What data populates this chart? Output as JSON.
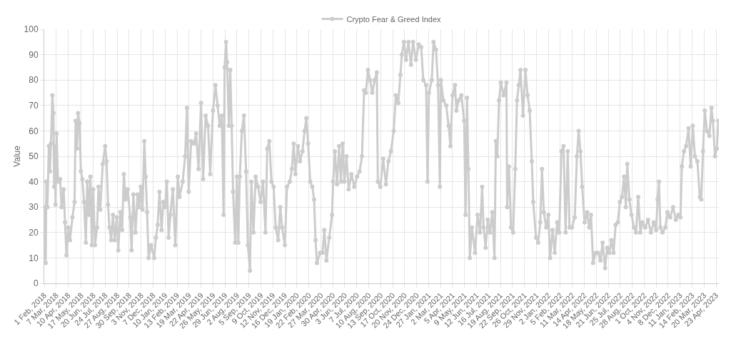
{
  "chart_data": {
    "type": "line",
    "ylabel": "Value",
    "legend": "top",
    "grid": true,
    "marker": "circle",
    "line_style": "solid",
    "xlim": [
      "2018-02-01",
      "2023-05-01"
    ],
    "ylim": [
      0,
      100
    ],
    "yticks": [
      0,
      10,
      20,
      30,
      40,
      50,
      60,
      70,
      80,
      90,
      100
    ],
    "xticks": [
      {
        "value": "2018-02-01",
        "label": "1 Feb, 2018"
      },
      {
        "value": "2018-03-07",
        "label": "7 Mar, 2018"
      },
      {
        "value": "2018-04-10",
        "label": "10 Apr, 2018"
      },
      {
        "value": "2018-05-17",
        "label": "17 May, 2018"
      },
      {
        "value": "2018-06-20",
        "label": "20 Jun, 2018"
      },
      {
        "value": "2018-07-24",
        "label": "24 Jul, 2018"
      },
      {
        "value": "2018-08-27",
        "label": "27 Aug, 2018"
      },
      {
        "value": "2018-09-30",
        "label": "30 Sep, 2018"
      },
      {
        "value": "2018-11-03",
        "label": "3 Nov, 2018"
      },
      {
        "value": "2018-12-07",
        "label": "7 Dec, 2018"
      },
      {
        "value": "2019-01-10",
        "label": "10 Jan, 2019"
      },
      {
        "value": "2019-02-13",
        "label": "13 Feb, 2019"
      },
      {
        "value": "2019-03-19",
        "label": "19 Mar, 2019"
      },
      {
        "value": "2019-04-22",
        "label": "22 Apr, 2019"
      },
      {
        "value": "2019-05-26",
        "label": "26 May, 2019"
      },
      {
        "value": "2019-06-29",
        "label": "29 Jun, 2019"
      },
      {
        "value": "2019-08-02",
        "label": "2 Aug, 2019"
      },
      {
        "value": "2019-09-05",
        "label": "5 Sep, 2019"
      },
      {
        "value": "2019-10-09",
        "label": "9 Oct, 2019"
      },
      {
        "value": "2019-11-12",
        "label": "12 Nov, 2019"
      },
      {
        "value": "2019-12-16",
        "label": "16 Dec, 2019"
      },
      {
        "value": "2020-01-19",
        "label": "19 Jan, 2020"
      },
      {
        "value": "2020-02-22",
        "label": "22 Feb, 2020"
      },
      {
        "value": "2020-03-27",
        "label": "27 Mar, 2020"
      },
      {
        "value": "2020-04-30",
        "label": "30 Apr, 2020"
      },
      {
        "value": "2020-06-03",
        "label": "3 Jun, 2020"
      },
      {
        "value": "2020-07-07",
        "label": "7 Jul, 2020"
      },
      {
        "value": "2020-08-10",
        "label": "10 Aug, 2020"
      },
      {
        "value": "2020-09-13",
        "label": "13 Sep, 2020"
      },
      {
        "value": "2020-10-17",
        "label": "17 Oct, 2020"
      },
      {
        "value": "2020-11-20",
        "label": "20 Nov, 2020"
      },
      {
        "value": "2020-12-24",
        "label": "24 Dec, 2020"
      },
      {
        "value": "2021-01-27",
        "label": "27 Jan, 2021"
      },
      {
        "value": "2021-03-02",
        "label": "2 Mar, 2021"
      },
      {
        "value": "2021-04-05",
        "label": "5 Apr, 2021"
      },
      {
        "value": "2021-05-09",
        "label": "9 May, 2021"
      },
      {
        "value": "2021-06-12",
        "label": "12 Jun, 2021"
      },
      {
        "value": "2021-07-16",
        "label": "16 Jul, 2021"
      },
      {
        "value": "2021-08-19",
        "label": "19 Aug, 2021"
      },
      {
        "value": "2021-09-22",
        "label": "22 Sep, 2021"
      },
      {
        "value": "2021-10-26",
        "label": "26 Oct, 2021"
      },
      {
        "value": "2021-11-29",
        "label": "29 Nov, 2021"
      },
      {
        "value": "2022-01-02",
        "label": "2 Jan, 2022"
      },
      {
        "value": "2022-02-05",
        "label": "5 Feb, 2022"
      },
      {
        "value": "2022-03-11",
        "label": "11 Mar, 2022"
      },
      {
        "value": "2022-04-14",
        "label": "14 Apr, 2022"
      },
      {
        "value": "2022-05-18",
        "label": "18 May, 2022"
      },
      {
        "value": "2022-06-21",
        "label": "21 Jun, 2022"
      },
      {
        "value": "2022-07-25",
        "label": "25 Jul, 2022"
      },
      {
        "value": "2022-08-28",
        "label": "28 Aug, 2022"
      },
      {
        "value": "2022-10-01",
        "label": "1 Oct, 2022"
      },
      {
        "value": "2022-11-04",
        "label": "4 Nov, 2022"
      },
      {
        "value": "2022-12-08",
        "label": "8 Dec, 2022"
      },
      {
        "value": "2023-01-11",
        "label": "11 Jan, 2023"
      },
      {
        "value": "2023-02-14",
        "label": "14 Feb, 2023"
      },
      {
        "value": "2023-03-20",
        "label": "20 Mar, 2023"
      },
      {
        "value": "2023-04-23",
        "label": "23 Apr, 2023"
      }
    ],
    "series": [
      {
        "name": "Crypto Fear & Greed Index",
        "color": "#cccccc",
        "x": [
          "2018-02-01",
          "2018-02-03",
          "2018-02-05",
          "2018-02-07",
          "2018-02-10",
          "2018-02-14",
          "2018-02-17",
          "2018-02-20",
          "2018-02-24",
          "2018-02-27",
          "2018-03-01",
          "2018-03-03",
          "2018-03-05",
          "2018-03-08",
          "2018-03-12",
          "2018-03-18",
          "2018-03-22",
          "2018-03-28",
          "2018-04-01",
          "2018-04-05",
          "2018-04-10",
          "2018-04-15",
          "2018-04-22",
          "2018-04-28",
          "2018-05-01",
          "2018-05-05",
          "2018-05-08",
          "2018-05-12",
          "2018-05-16",
          "2018-05-20",
          "2018-05-25",
          "2018-05-30",
          "2018-06-03",
          "2018-06-07",
          "2018-06-12",
          "2018-06-16",
          "2018-06-20",
          "2018-06-25",
          "2018-07-01",
          "2018-07-05",
          "2018-07-10",
          "2018-07-17",
          "2018-07-24",
          "2018-07-28",
          "2018-08-01",
          "2018-08-05",
          "2018-08-10",
          "2018-08-15",
          "2018-08-20",
          "2018-08-26",
          "2018-08-30",
          "2018-09-05",
          "2018-09-10",
          "2018-09-15",
          "2018-09-20",
          "2018-09-26",
          "2018-10-03",
          "2018-10-07",
          "2018-10-12",
          "2018-10-18",
          "2018-10-24",
          "2018-10-28",
          "2018-11-02",
          "2018-11-07",
          "2018-11-12",
          "2018-11-16",
          "2018-11-20",
          "2018-11-24",
          "2018-12-01",
          "2018-12-10",
          "2018-12-15",
          "2018-12-20",
          "2018-12-25",
          "2018-12-31",
          "2019-01-05",
          "2019-01-10",
          "2019-01-15",
          "2019-01-20",
          "2019-01-25",
          "2019-02-01",
          "2019-02-08",
          "2019-02-15",
          "2019-02-20",
          "2019-03-01",
          "2019-03-08",
          "2019-03-13",
          "2019-03-18",
          "2019-03-25",
          "2019-04-02",
          "2019-04-08",
          "2019-04-15",
          "2019-04-22",
          "2019-04-28",
          "2019-05-05",
          "2019-05-12",
          "2019-05-18",
          "2019-05-26",
          "2019-06-02",
          "2019-06-08",
          "2019-06-14",
          "2019-06-20",
          "2019-06-25",
          "2019-06-28",
          "2019-07-02",
          "2019-07-05",
          "2019-07-10",
          "2019-07-14",
          "2019-07-18",
          "2019-07-22",
          "2019-07-28",
          "2019-08-02",
          "2019-08-06",
          "2019-08-10",
          "2019-08-16",
          "2019-08-22",
          "2019-08-28",
          "2019-09-02",
          "2019-09-08",
          "2019-09-12",
          "2019-09-18",
          "2019-09-24",
          "2019-10-01",
          "2019-10-08",
          "2019-10-15",
          "2019-10-22",
          "2019-10-27",
          "2019-11-02",
          "2019-11-08",
          "2019-11-14",
          "2019-11-20",
          "2019-11-27",
          "2019-12-03",
          "2019-12-08",
          "2019-12-16",
          "2019-12-22",
          "2019-12-30",
          "2020-01-05",
          "2020-01-10",
          "2020-01-15",
          "2020-01-22",
          "2020-01-28",
          "2020-02-04",
          "2020-02-10",
          "2020-02-15",
          "2020-02-20",
          "2020-02-26",
          "2020-03-03",
          "2020-03-08",
          "2020-03-12",
          "2020-03-16",
          "2020-03-25",
          "2020-04-01",
          "2020-04-06",
          "2020-04-12",
          "2020-04-20",
          "2020-04-28",
          "2020-05-01",
          "2020-05-06",
          "2020-05-12",
          "2020-05-18",
          "2020-05-23",
          "2020-05-28",
          "2020-06-02",
          "2020-06-08",
          "2020-06-14",
          "2020-06-22",
          "2020-06-30",
          "2020-07-08",
          "2020-07-15",
          "2020-07-22",
          "2020-07-28",
          "2020-08-02",
          "2020-08-08",
          "2020-08-14",
          "2020-08-20",
          "2020-08-27",
          "2020-09-02",
          "2020-09-05",
          "2020-09-12",
          "2020-09-20",
          "2020-09-28",
          "2020-10-05",
          "2020-10-12",
          "2020-10-20",
          "2020-10-26",
          "2020-11-02",
          "2020-11-08",
          "2020-11-12",
          "2020-11-18",
          "2020-11-24",
          "2020-12-01",
          "2020-12-08",
          "2020-12-14",
          "2020-12-22",
          "2020-12-30",
          "2021-01-06",
          "2021-01-12",
          "2021-01-20",
          "2021-01-24",
          "2021-01-28",
          "2021-02-05",
          "2021-02-10",
          "2021-02-17",
          "2021-02-23",
          "2021-02-28",
          "2021-03-03",
          "2021-03-10",
          "2021-03-18",
          "2021-03-25",
          "2021-03-30",
          "2021-04-05",
          "2021-04-12",
          "2021-04-16",
          "2021-04-22",
          "2021-04-30",
          "2021-05-08",
          "2021-05-12",
          "2021-05-16",
          "2021-05-20",
          "2021-05-24",
          "2021-05-30",
          "2021-06-08",
          "2021-06-15",
          "2021-06-22",
          "2021-06-28",
          "2021-07-02",
          "2021-07-08",
          "2021-07-14",
          "2021-07-20",
          "2021-07-27",
          "2021-08-02",
          "2021-08-06",
          "2021-08-10",
          "2021-08-15",
          "2021-08-20",
          "2021-08-28",
          "2021-09-05",
          "2021-09-07",
          "2021-09-12",
          "2021-09-18",
          "2021-09-24",
          "2021-09-30",
          "2021-10-05",
          "2021-10-10",
          "2021-10-15",
          "2021-10-22",
          "2021-10-29",
          "2021-11-04",
          "2021-11-10",
          "2021-11-16",
          "2021-11-20",
          "2021-11-28",
          "2021-12-04",
          "2021-12-10",
          "2021-12-15",
          "2021-12-20",
          "2021-12-27",
          "2022-01-02",
          "2022-01-07",
          "2022-01-14",
          "2022-01-20",
          "2022-01-27",
          "2022-02-02",
          "2022-02-08",
          "2022-02-14",
          "2022-02-20",
          "2022-02-26",
          "2022-03-03",
          "2022-03-10",
          "2022-03-18",
          "2022-03-24",
          "2022-03-29",
          "2022-04-03",
          "2022-04-08",
          "2022-04-15",
          "2022-04-22",
          "2022-04-28",
          "2022-05-03",
          "2022-05-09",
          "2022-05-16",
          "2022-05-23",
          "2022-05-30",
          "2022-06-05",
          "2022-06-12",
          "2022-06-18",
          "2022-06-24",
          "2022-06-30",
          "2022-07-06",
          "2022-07-12",
          "2022-07-18",
          "2022-07-24",
          "2022-07-30",
          "2022-08-05",
          "2022-08-10",
          "2022-08-14",
          "2022-08-20",
          "2022-08-26",
          "2022-09-02",
          "2022-09-08",
          "2022-09-14",
          "2022-09-20",
          "2022-09-26",
          "2022-10-04",
          "2022-10-12",
          "2022-10-20",
          "2022-10-28",
          "2022-11-04",
          "2022-11-08",
          "2022-11-12",
          "2022-11-16",
          "2022-11-22",
          "2022-11-30",
          "2022-12-06",
          "2022-12-14",
          "2022-12-22",
          "2022-12-30",
          "2023-01-06",
          "2023-01-12",
          "2023-01-16",
          "2023-01-22",
          "2023-01-28",
          "2023-02-04",
          "2023-02-10",
          "2023-02-16",
          "2023-02-22",
          "2023-03-01",
          "2023-03-08",
          "2023-03-12",
          "2023-03-17",
          "2023-03-22",
          "2023-03-28",
          "2023-04-04",
          "2023-04-10",
          "2023-04-14",
          "2023-04-20",
          "2023-04-25",
          "2023-04-30"
        ],
        "values": [
          30,
          15,
          8,
          40,
          30,
          54,
          44,
          55,
          74,
          67,
          38,
          54,
          31,
          59,
          40,
          41,
          30,
          37,
          24,
          11,
          22,
          17,
          26,
          32,
          64,
          53,
          67,
          63,
          44,
          41,
          32,
          16,
          40,
          27,
          42,
          15,
          37,
          15,
          22,
          38,
          29,
          47,
          54,
          48,
          31,
          22,
          17,
          27,
          17,
          26,
          13,
          28,
          21,
          43,
          33,
          37,
          26,
          13,
          35,
          20,
          35,
          30,
          38,
          29,
          56,
          42,
          28,
          10,
          15,
          10,
          18,
          23,
          36,
          21,
          32,
          30,
          40,
          18,
          27,
          37,
          15,
          42,
          34,
          40,
          50,
          69,
          36,
          56,
          55,
          59,
          45,
          71,
          41,
          66,
          62,
          43,
          68,
          78,
          70,
          62,
          66,
          27,
          85,
          95,
          87,
          62,
          84,
          62,
          36,
          16,
          42,
          16,
          42,
          60,
          66,
          44,
          15,
          5,
          40,
          20,
          42,
          38,
          32,
          40,
          20,
          53,
          56,
          40,
          38,
          22,
          17,
          30,
          22,
          15,
          38,
          40,
          45,
          55,
          43,
          54,
          48,
          52,
          60,
          65,
          55,
          40,
          38,
          33,
          17,
          8,
          12,
          12,
          21,
          9,
          18,
          27,
          40,
          52,
          39,
          54,
          40,
          55,
          40,
          50,
          37,
          43,
          38,
          42,
          44,
          50,
          76,
          75,
          84,
          80,
          75,
          80,
          83,
          40,
          38,
          49,
          39,
          48,
          52,
          60,
          74,
          71,
          82,
          90,
          95,
          88,
          95,
          86,
          95,
          88,
          94,
          93,
          80,
          78,
          40,
          75,
          80,
          95,
          92,
          78,
          38,
          80,
          72,
          70,
          62,
          54,
          74,
          78,
          68,
          72,
          74,
          64,
          27,
          73,
          45,
          10,
          22,
          12,
          27,
          20,
          38,
          22,
          14,
          25,
          20,
          28,
          10,
          56,
          50,
          72,
          79,
          74,
          79,
          30,
          46,
          22,
          20,
          45,
          72,
          78,
          84,
          66,
          84,
          74,
          68,
          48,
          32,
          18,
          16,
          24,
          45,
          28,
          22,
          27,
          10,
          21,
          12,
          24,
          20,
          52,
          54,
          20,
          52,
          22,
          22,
          26,
          50,
          60,
          52,
          38,
          24,
          28,
          22,
          27,
          8,
          12,
          12,
          9,
          16,
          6,
          14,
          12,
          17,
          12,
          23,
          24,
          32,
          34,
          42,
          30,
          47,
          33,
          27,
          22,
          20,
          34,
          20,
          24,
          22,
          25,
          20,
          24,
          21,
          33,
          40,
          22,
          20,
          22,
          28,
          26,
          30,
          25,
          27,
          26,
          46,
          52,
          54,
          61,
          46,
          62,
          50,
          48,
          34,
          33,
          52,
          68,
          60,
          58,
          69,
          64,
          50,
          53,
          64
        ]
      }
    ]
  }
}
